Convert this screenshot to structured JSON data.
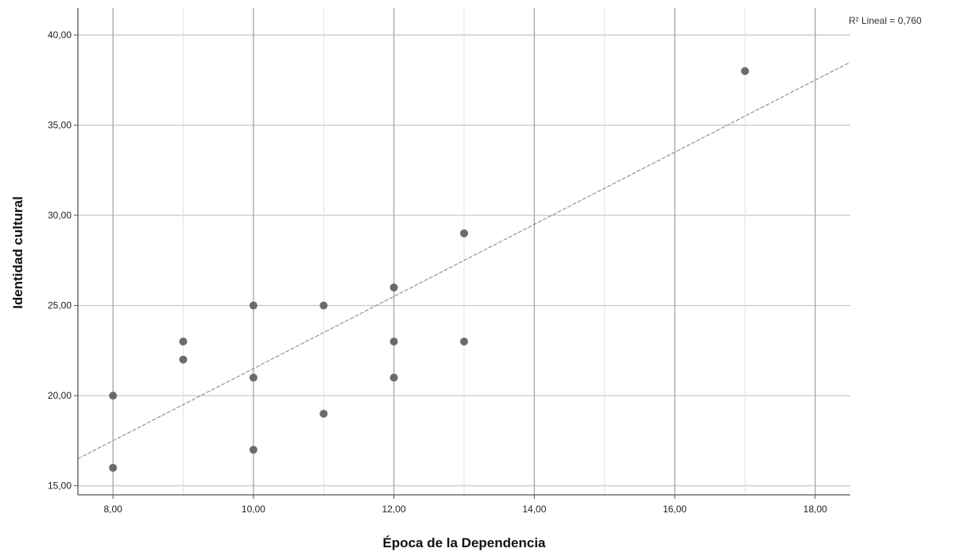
{
  "chart_data": {
    "type": "scatter",
    "title": "",
    "xlabel": "Época de la Dependencia",
    "ylabel": "Identidad cultural",
    "xlim": [
      7.5,
      18.5
    ],
    "ylim": [
      14.5,
      41.5
    ],
    "x_ticks": [
      8,
      10,
      12,
      14,
      16,
      18
    ],
    "x_tick_labels": [
      "8,00",
      "10,00",
      "12,00",
      "14,00",
      "16,00",
      "18,00"
    ],
    "y_ticks": [
      15,
      20,
      25,
      30,
      35,
      40
    ],
    "y_tick_labels": [
      "15,00",
      "20,00",
      "25,00",
      "30,00",
      "35,00",
      "40,00"
    ],
    "grid": true,
    "points": [
      {
        "x": 8,
        "y": 20
      },
      {
        "x": 8,
        "y": 16
      },
      {
        "x": 9,
        "y": 23
      },
      {
        "x": 9,
        "y": 22
      },
      {
        "x": 10,
        "y": 25
      },
      {
        "x": 10,
        "y": 21
      },
      {
        "x": 10,
        "y": 17
      },
      {
        "x": 11,
        "y": 25
      },
      {
        "x": 11,
        "y": 19
      },
      {
        "x": 12,
        "y": 26
      },
      {
        "x": 12,
        "y": 23
      },
      {
        "x": 12,
        "y": 21
      },
      {
        "x": 13,
        "y": 29
      },
      {
        "x": 13,
        "y": 23
      },
      {
        "x": 17,
        "y": 38
      }
    ],
    "fit_line": {
      "type": "linear",
      "x": [
        7.5,
        18.5
      ],
      "y": [
        16.5,
        38.5
      ]
    },
    "annotation": "R² Lineal = 0,760",
    "colors": {
      "points": "#6b6b6b",
      "fit_line": "#8a8a8a",
      "grid": "#c8c8c8",
      "axis": "#555555"
    }
  }
}
